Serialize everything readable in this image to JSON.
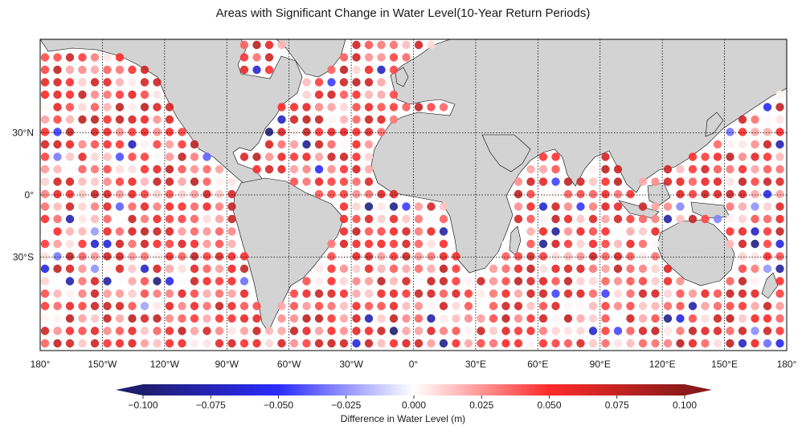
{
  "title": "Areas with Significant Change in Water Level(10-Year Return Periods)",
  "map": {
    "projection": "equirectangular",
    "lon_range": [
      -180,
      180
    ],
    "lat_range": [
      -75,
      75
    ],
    "land_color": "#d3d3d3",
    "ocean_color": "#ffffff",
    "graticule_lons": [
      -150,
      -120,
      -90,
      -60,
      -30,
      0,
      30,
      60,
      90,
      120,
      150
    ],
    "graticule_lats": [
      -30,
      0,
      30
    ],
    "lon_tick_labels": [
      "180°",
      "150°W",
      "120°W",
      "90°W",
      "60°W",
      "30°W",
      "0°",
      "30°E",
      "60°E",
      "90°E",
      "120°E",
      "150°E",
      "180°"
    ],
    "lat_tick_labels": [
      "30°S",
      "0°",
      "30°N"
    ]
  },
  "colorbar": {
    "label": "Difference in Water Level (m)",
    "min": -0.1,
    "max": 0.1,
    "extend": "both",
    "ticks": [
      "−0.100",
      "−0.075",
      "−0.050",
      "−0.025",
      "0.000",
      "0.025",
      "0.050",
      "0.075",
      "0.100"
    ],
    "colormap": [
      "#1e1e6e",
      "#2b2bff",
      "#ffffff",
      "#ff2b2b",
      "#8b1a1a"
    ]
  }
}
